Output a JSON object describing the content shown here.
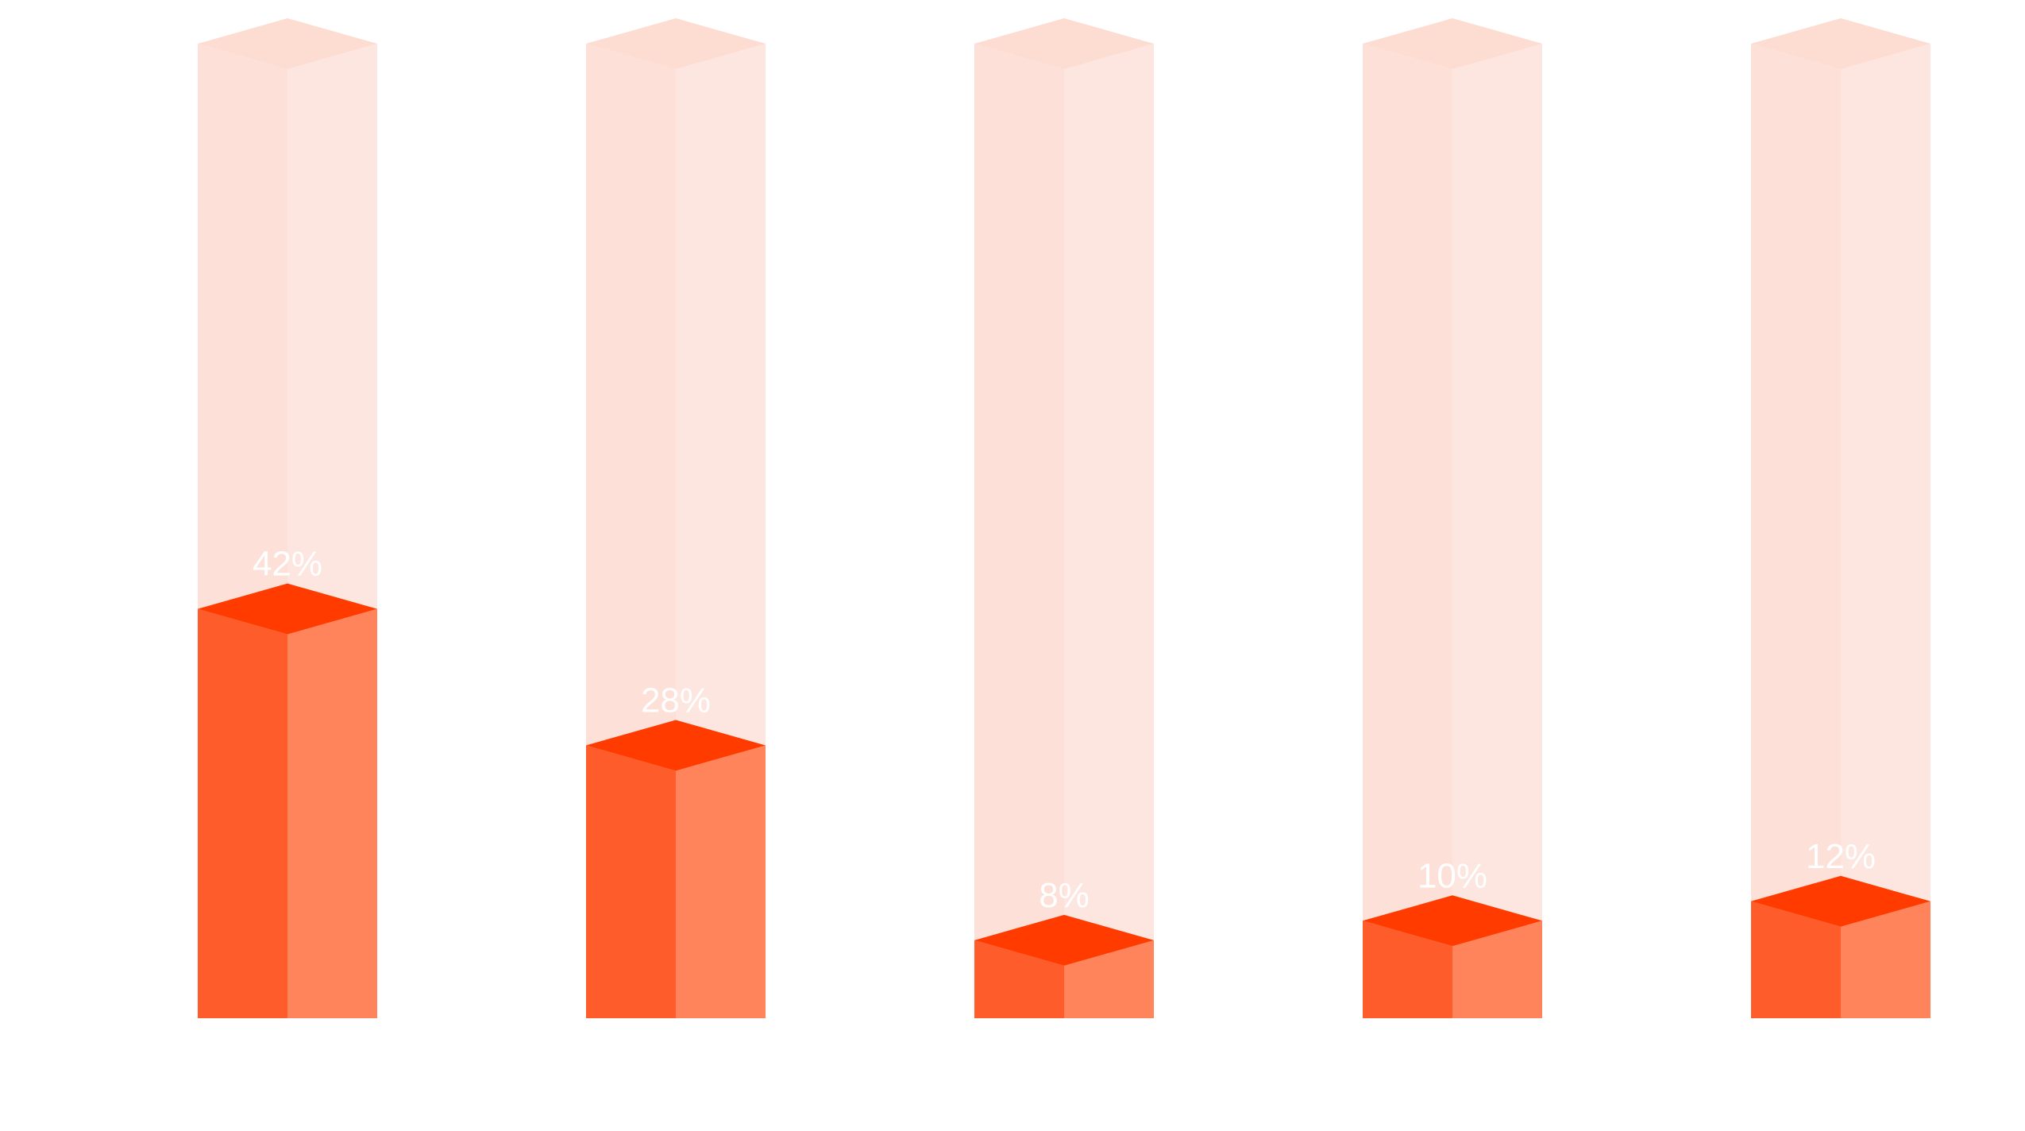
{
  "chart_data": {
    "type": "bar",
    "style": "3d-cylinder-fill",
    "categories": [
      "",
      "",
      "",
      "",
      ""
    ],
    "values": [
      42,
      28,
      8,
      10,
      12
    ],
    "value_labels": [
      "42%",
      "28%",
      "8%",
      "10%",
      "12%"
    ],
    "unit": "%",
    "ylim": [
      0,
      100
    ],
    "title": "",
    "xlabel": "",
    "ylabel": "",
    "grid": false,
    "legend": "none",
    "colors": {
      "background": "#ffffff",
      "fill_front": "#ff5c2b",
      "fill_side": "#ff845c",
      "fill_top": "#ff3b00",
      "track_front": "#fde0d7",
      "track_side": "#fde6df",
      "track_top": "#fddcd2",
      "label": "#ffffff"
    }
  }
}
